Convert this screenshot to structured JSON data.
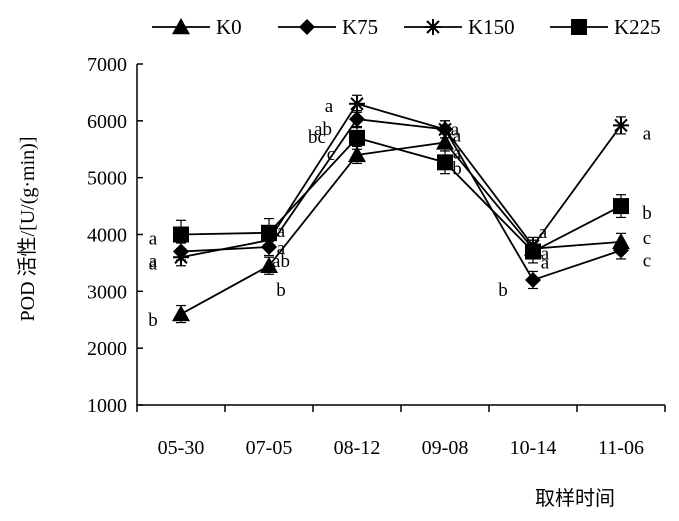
{
  "chart_data": {
    "type": "line",
    "title": "",
    "xlabel": "取样时间",
    "ylabel": "POD 活性/[U/(g·min)]",
    "ylim": [
      1000,
      7000
    ],
    "yticks": [
      "1000",
      "2000",
      "3000",
      "4000",
      "5000",
      "6000",
      "7000"
    ],
    "categories": [
      "05-30",
      "07-05",
      "08-12",
      "09-08",
      "10-14",
      "11-06"
    ],
    "grid": false,
    "legend_position": "top",
    "series": [
      {
        "name": "K0",
        "marker": "triangle",
        "values": [
          2600,
          3450,
          5400,
          5620,
          3750,
          3870
        ],
        "errors": [
          150,
          150,
          150,
          150,
          150,
          150
        ],
        "labels": [
          "b",
          "b",
          "c",
          "a",
          "a",
          "c"
        ]
      },
      {
        "name": "K75",
        "marker": "diamond",
        "values": [
          3700,
          3780,
          6030,
          5850,
          3200,
          3720
        ],
        "errors": [
          150,
          150,
          150,
          150,
          150,
          150
        ],
        "labels": [
          "a",
          "ab",
          "ab",
          "a",
          "b",
          "c"
        ]
      },
      {
        "name": "K150",
        "marker": "star",
        "values": [
          3600,
          3900,
          6300,
          5850,
          3800,
          5920
        ],
        "errors": [
          150,
          150,
          150,
          150,
          150,
          150
        ],
        "labels": [
          "a",
          "a",
          "a",
          "a",
          "a",
          "a"
        ]
      },
      {
        "name": "K225",
        "marker": "square",
        "values": [
          4000,
          4030,
          5700,
          5270,
          3700,
          4500
        ],
        "errors": [
          250,
          250,
          200,
          200,
          200,
          200
        ],
        "labels": [
          "a",
          "a",
          "bc",
          "b",
          "a",
          "b"
        ]
      }
    ]
  }
}
